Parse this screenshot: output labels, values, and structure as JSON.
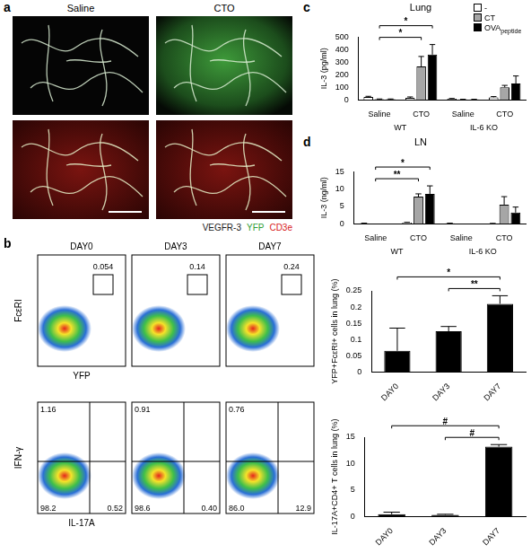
{
  "panel_a": {
    "letter": "a",
    "columns": [
      "Saline",
      "CTO"
    ],
    "stain_legend": [
      {
        "text": "VEGFR-3",
        "color": "#1a1a1a"
      },
      {
        "text": "YFP",
        "color": "#2f9e36"
      },
      {
        "text": "CD3e",
        "color": "#d7191c"
      }
    ]
  },
  "panel_b_flow": {
    "letter": "b",
    "days": [
      "DAY0",
      "DAY3",
      "DAY7"
    ],
    "rows": [
      {
        "y_label": "FcεRI",
        "x_label": "YFP",
        "gate_values": [
          0.054,
          0.14,
          0.24
        ]
      },
      {
        "y_label": "IFN-γ",
        "x_label": "IL-17A",
        "quadrants": [
          {
            "upper_left": 1.16,
            "lower_left": 98.2,
            "lower_right": 0.52
          },
          {
            "upper_left": 0.91,
            "lower_left": 98.6,
            "lower_right": {
              "value": 0.4,
              "label": "0.40"
            }
          },
          {
            "upper_left": 0.76,
            "lower_left": {
              "value": 86,
              "label": "86.0"
            },
            "lower_right": 12.9
          }
        ]
      }
    ]
  },
  "chart_data": [
    {
      "letter": "c",
      "type": "bar",
      "title": "Lung",
      "y_label": "IL-3 (pg/ml)",
      "categories": [
        "Saline",
        "CTO",
        "Saline",
        "CTO"
      ],
      "groups": [
        {
          "label": "WT",
          "first": 0,
          "last": 1
        },
        {
          "label": "IL-6 KO",
          "first": 2,
          "last": 3
        }
      ],
      "series": [
        {
          "name": "-",
          "color": "#ffffff",
          "values": [
            22,
            15,
            8,
            20
          ],
          "errors": [
            6,
            8,
            3,
            6
          ]
        },
        {
          "name": "CT",
          "color": "#a6a6a6",
          "values": [
            5,
            265,
            3,
            100
          ],
          "errors": [
            2,
            80,
            1,
            15
          ]
        },
        {
          "name": "OVA",
          "subscript": "peptide",
          "color": "#000000",
          "values": [
            5,
            360,
            3,
            130
          ],
          "errors": [
            2,
            80,
            1,
            60
          ]
        }
      ],
      "ylim": [
        0,
        500
      ],
      "yticks": [
        0,
        100,
        200,
        300,
        400,
        500
      ],
      "grid": false,
      "legend": "top-right",
      "brackets": [
        {
          "label": "*",
          "from": [
            0
          ],
          "to": [
            1,
            1
          ]
        },
        {
          "label": "*",
          "from": [
            0
          ],
          "to": [
            1,
            2
          ]
        }
      ]
    },
    {
      "letter": "d",
      "type": "bar",
      "title": "LN",
      "y_label": "IL-3 (ng/ml)",
      "categories": [
        "Saline",
        "CTO",
        "Saline",
        "CTO"
      ],
      "groups": [
        {
          "label": "WT",
          "first": 0,
          "last": 1
        },
        {
          "label": "IL-6 KO",
          "first": 2,
          "last": 3
        }
      ],
      "series": [
        {
          "name": "-",
          "color": "#ffffff",
          "values": [
            0.1,
            0.3,
            0.1,
            0.05
          ],
          "errors": [
            0.05,
            0.1,
            0.05,
            0.05
          ]
        },
        {
          "name": "CT",
          "color": "#a6a6a6",
          "values": [
            0,
            7.8,
            0,
            5.5
          ],
          "errors": [
            0,
            0.8,
            0,
            2.3
          ]
        },
        {
          "name": "OVA",
          "subscript": "peptide",
          "color": "#000000",
          "values": [
            0,
            8.6,
            0,
            3.2
          ],
          "errors": [
            0,
            2.3,
            0,
            1.6
          ]
        }
      ],
      "ylim": [
        0,
        15
      ],
      "yticks": [
        0,
        5,
        10,
        15
      ],
      "grid": false,
      "brackets": [
        {
          "label": "**",
          "from": [
            0
          ],
          "to": [
            1,
            1
          ]
        },
        {
          "label": "*",
          "from": [
            0
          ],
          "to": [
            1,
            2
          ]
        }
      ]
    },
    {
      "type": "bar",
      "y_label": "YFP+FcεRI+ cells in lung (%)",
      "categories": [
        "DAY0",
        "DAY3",
        "DAY7"
      ],
      "values": [
        0.065,
        0.125,
        0.21
      ],
      "errors": [
        0.07,
        0.015,
        0.025
      ],
      "color": "#000000",
      "ylim": [
        0,
        0.25
      ],
      "yticks": [
        0,
        0.05,
        0.1,
        0.15,
        0.2,
        0.25
      ],
      "grid": false,
      "brackets": [
        {
          "label": "**",
          "from": [
            1
          ],
          "to": [
            2
          ]
        },
        {
          "label": "*",
          "from": [
            0
          ],
          "to": [
            2
          ]
        }
      ]
    },
    {
      "type": "bar",
      "y_label": "IL-17A+CD4+ T cells in lung (%)",
      "categories": [
        "DAY0",
        "DAY3",
        "DAY7"
      ],
      "values": [
        0.4,
        0.3,
        13.2
      ],
      "errors": [
        0.4,
        0.1,
        0.4
      ],
      "color": "#000000",
      "ylim": [
        0,
        15
      ],
      "yticks": [
        0,
        5,
        10,
        15
      ],
      "grid": false,
      "brackets": [
        {
          "label": "#",
          "from": [
            1
          ],
          "to": [
            2
          ]
        },
        {
          "label": "#",
          "from": [
            0
          ],
          "to": [
            2
          ]
        }
      ]
    }
  ]
}
